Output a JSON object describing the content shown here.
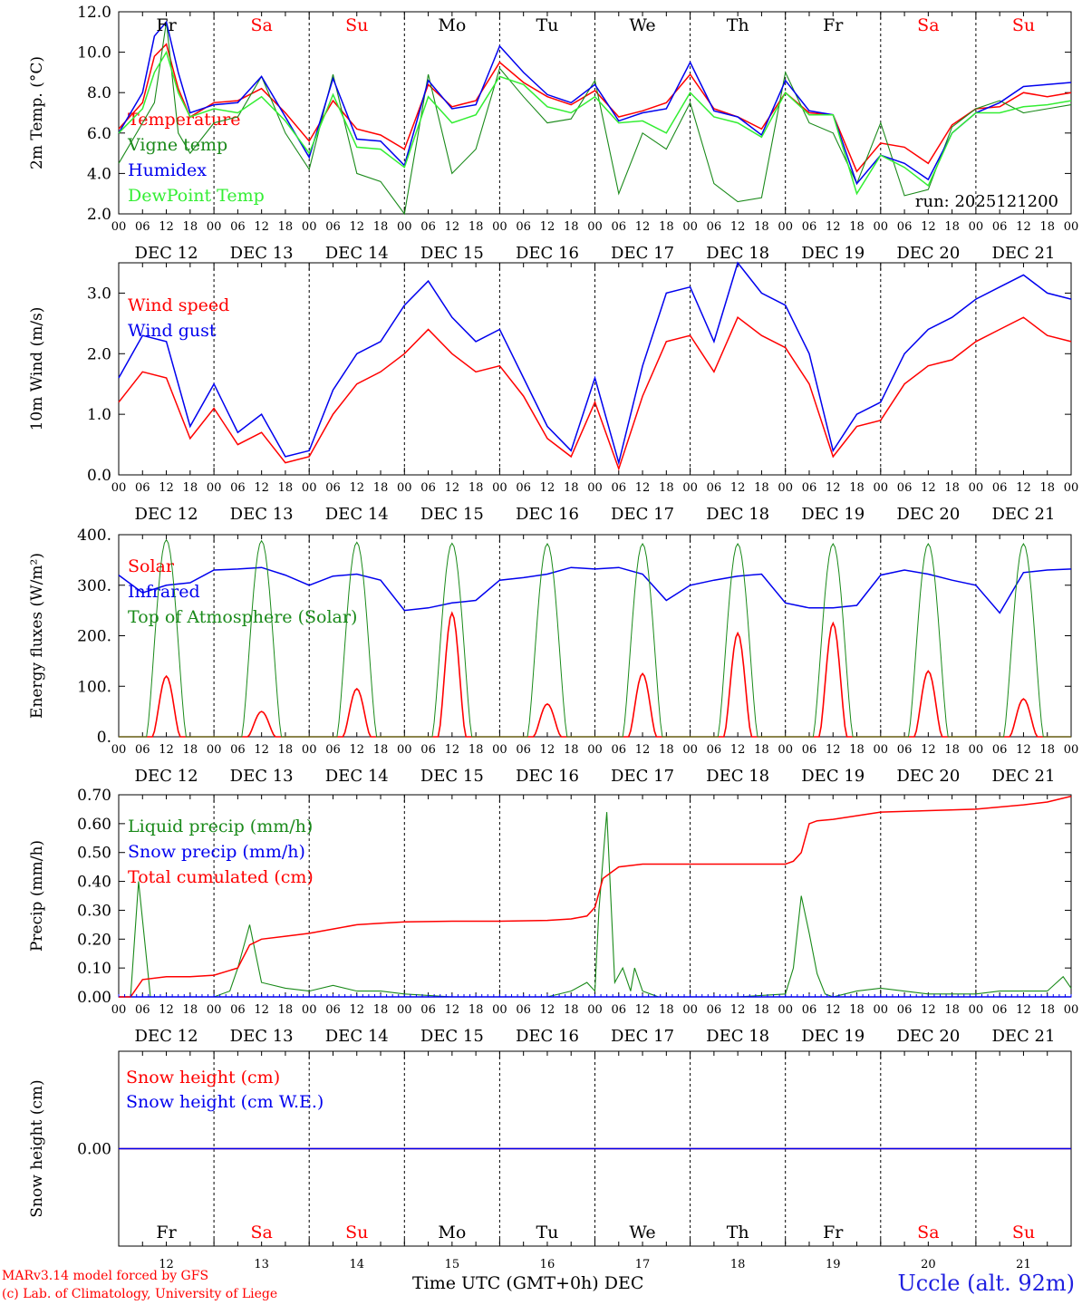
{
  "colors": {
    "red": "#ff0000",
    "darkgreen": "#1a8a1a",
    "blue": "#0000ee",
    "lightgreen": "#33ee33",
    "weekend": "#ff0000",
    "weekday": "#000000"
  },
  "x_axis": {
    "hour_ticks": [
      "00",
      "06",
      "12",
      "18"
    ],
    "final_tick": "00",
    "dates": [
      "DEC 12",
      "DEC 13",
      "DEC 14",
      "DEC 15",
      "DEC 16",
      "DEC 17",
      "DEC 18",
      "DEC 19",
      "DEC 20",
      "DEC 21"
    ],
    "days": [
      "Fr",
      "Sa",
      "Su",
      "Mo",
      "Tu",
      "We",
      "Th",
      "Fr",
      "Sa",
      "Su"
    ],
    "weekend": [
      false,
      true,
      true,
      false,
      false,
      false,
      false,
      false,
      true,
      true
    ],
    "day_numbers": [
      "12",
      "13",
      "14",
      "15",
      "16",
      "17",
      "18",
      "19",
      "20",
      "21"
    ],
    "title": "Time UTC (GMT+0h)",
    "title_suffix": "DEC"
  },
  "footer": {
    "model": "MARv3.14 model forced by GFS",
    "lab": "(c) Lab. of Climatology, University of Liege",
    "station": "Uccle (alt. 92m)"
  },
  "chart_data": [
    {
      "type": "line",
      "ylabel": "2m Temp. (°C)",
      "ylim": [
        2,
        12
      ],
      "yticks": [
        "2.0",
        "4.0",
        "6.0",
        "8.0",
        "10.0",
        "12.0"
      ],
      "annotation": "run: 2025121200",
      "series": [
        {
          "name": "Temperature",
          "color": "red",
          "x_hours": [
            0,
            6,
            9,
            12,
            15,
            18,
            24,
            30,
            36,
            42,
            48,
            54,
            60,
            66,
            72,
            78,
            84,
            90,
            96,
            102,
            108,
            114,
            120,
            126,
            132,
            138,
            144,
            150,
            156,
            162,
            168,
            174,
            180,
            186,
            192,
            198,
            204,
            210,
            216,
            222,
            228,
            234,
            240
          ],
          "values": [
            6.2,
            7.5,
            9.8,
            10.4,
            8.2,
            6.8,
            7.5,
            7.6,
            8.2,
            7.0,
            5.6,
            7.6,
            6.2,
            5.9,
            5.2,
            8.4,
            7.3,
            7.6,
            9.5,
            8.5,
            7.8,
            7.4,
            8.1,
            6.8,
            7.1,
            7.5,
            8.9,
            7.2,
            6.8,
            6.2,
            8.0,
            7.0,
            6.9,
            4.1,
            5.5,
            5.3,
            4.5,
            6.4,
            7.2,
            7.3,
            8.0,
            7.8,
            8.0
          ]
        },
        {
          "name": "Vigne temp",
          "color": "darkgreen",
          "x_hours": [
            0,
            6,
            9,
            12,
            15,
            18,
            24,
            30,
            36,
            42,
            48,
            54,
            60,
            66,
            72,
            78,
            84,
            90,
            96,
            102,
            108,
            114,
            120,
            126,
            132,
            138,
            144,
            150,
            156,
            162,
            168,
            174,
            180,
            186,
            192,
            198,
            204,
            210,
            216,
            222,
            228,
            234,
            240
          ],
          "values": [
            4.5,
            6.5,
            7.5,
            11.5,
            6.0,
            5.0,
            6.5,
            6.8,
            8.8,
            6.0,
            4.2,
            8.9,
            4.0,
            3.6,
            2.0,
            8.9,
            4.0,
            5.2,
            9.2,
            7.8,
            6.5,
            6.7,
            8.6,
            3.0,
            6.0,
            5.2,
            7.5,
            3.5,
            2.6,
            2.8,
            9.0,
            6.5,
            6.0,
            3.5,
            6.5,
            2.9,
            3.2,
            6.3,
            7.2,
            7.6,
            7.0,
            7.2,
            7.4
          ]
        },
        {
          "name": "Humidex",
          "color": "blue",
          "x_hours": [
            0,
            6,
            9,
            12,
            15,
            18,
            24,
            30,
            36,
            42,
            48,
            54,
            60,
            66,
            72,
            78,
            84,
            90,
            96,
            102,
            108,
            114,
            120,
            126,
            132,
            138,
            144,
            150,
            156,
            162,
            168,
            174,
            180,
            186,
            192,
            198,
            204,
            210,
            216,
            222,
            228,
            234,
            240
          ],
          "values": [
            6.0,
            8.0,
            10.8,
            11.5,
            9.0,
            7.0,
            7.4,
            7.5,
            8.8,
            6.8,
            4.8,
            8.7,
            5.7,
            5.6,
            4.4,
            8.6,
            7.2,
            7.4,
            10.3,
            9.0,
            7.9,
            7.5,
            8.4,
            6.6,
            7.0,
            7.2,
            9.5,
            7.1,
            6.8,
            5.9,
            8.6,
            7.1,
            6.9,
            3.5,
            4.9,
            4.5,
            3.7,
            6.0,
            7.0,
            7.5,
            8.3,
            8.4,
            8.5
          ]
        },
        {
          "name": "DewPoint Temp",
          "color": "lightgreen",
          "x_hours": [
            0,
            6,
            9,
            12,
            15,
            18,
            24,
            30,
            36,
            42,
            48,
            54,
            60,
            66,
            72,
            78,
            84,
            90,
            96,
            102,
            108,
            114,
            120,
            126,
            132,
            138,
            144,
            150,
            156,
            162,
            168,
            174,
            180,
            186,
            192,
            198,
            204,
            210,
            216,
            222,
            228,
            234,
            240
          ],
          "values": [
            6.0,
            7.2,
            9.0,
            10.0,
            8.0,
            6.8,
            7.2,
            7.0,
            7.8,
            6.6,
            5.0,
            7.9,
            5.3,
            5.2,
            4.3,
            7.8,
            6.5,
            6.9,
            8.8,
            8.4,
            7.3,
            7.0,
            7.8,
            6.5,
            6.6,
            6.0,
            8.0,
            6.8,
            6.5,
            5.8,
            8.0,
            6.9,
            6.9,
            3.0,
            4.9,
            4.3,
            3.4,
            6.0,
            7.0,
            7.0,
            7.3,
            7.4,
            7.6
          ]
        }
      ]
    },
    {
      "type": "line",
      "ylabel": "10m Wind (m/s)",
      "ylim": [
        0,
        3.5
      ],
      "yticks": [
        "0.0",
        "1.0",
        "2.0",
        "3.0"
      ],
      "series": [
        {
          "name": "Wind speed",
          "color": "red",
          "x_hours": [
            0,
            6,
            12,
            18,
            24,
            30,
            36,
            42,
            48,
            54,
            60,
            66,
            72,
            78,
            84,
            90,
            96,
            102,
            108,
            114,
            120,
            126,
            132,
            138,
            144,
            150,
            156,
            162,
            168,
            174,
            180,
            186,
            192,
            198,
            204,
            210,
            216,
            222,
            228,
            234,
            240
          ],
          "values": [
            1.2,
            1.7,
            1.6,
            0.6,
            1.1,
            0.5,
            0.7,
            0.2,
            0.3,
            1.0,
            1.5,
            1.7,
            2.0,
            2.4,
            2.0,
            1.7,
            1.8,
            1.3,
            0.6,
            0.3,
            1.2,
            0.1,
            1.3,
            2.2,
            2.3,
            1.7,
            2.6,
            2.3,
            2.1,
            1.5,
            0.3,
            0.8,
            0.9,
            1.5,
            1.8,
            1.9,
            2.2,
            2.4,
            2.6,
            2.3,
            2.2
          ]
        },
        {
          "name": "Wind gust",
          "color": "blue",
          "x_hours": [
            0,
            6,
            12,
            18,
            24,
            30,
            36,
            42,
            48,
            54,
            60,
            66,
            72,
            78,
            84,
            90,
            96,
            102,
            108,
            114,
            120,
            126,
            132,
            138,
            144,
            150,
            156,
            162,
            168,
            174,
            180,
            186,
            192,
            198,
            204,
            210,
            216,
            222,
            228,
            234,
            240
          ],
          "values": [
            1.6,
            2.3,
            2.2,
            0.8,
            1.5,
            0.7,
            1.0,
            0.3,
            0.4,
            1.4,
            2.0,
            2.2,
            2.8,
            3.2,
            2.6,
            2.2,
            2.4,
            1.6,
            0.8,
            0.4,
            1.6,
            0.2,
            1.8,
            3.0,
            3.1,
            2.2,
            3.5,
            3.0,
            2.8,
            2.0,
            0.4,
            1.0,
            1.2,
            2.0,
            2.4,
            2.6,
            2.9,
            3.1,
            3.3,
            3.0,
            2.9
          ]
        }
      ]
    },
    {
      "type": "line",
      "ylabel": "Energy fluxes (W/m²)",
      "ylim": [
        0,
        400
      ],
      "yticks": [
        "0.",
        "100.",
        "200.",
        "300.",
        "400."
      ],
      "series": [
        {
          "name": "Solar",
          "color": "red",
          "peak_values": [
            120,
            50,
            95,
            245,
            65,
            125,
            205,
            225,
            130,
            75
          ]
        },
        {
          "name": "Infrared",
          "color": "blue",
          "x_hours": [
            0,
            6,
            12,
            18,
            24,
            30,
            36,
            42,
            48,
            54,
            60,
            66,
            72,
            78,
            84,
            90,
            96,
            102,
            108,
            114,
            120,
            126,
            132,
            138,
            144,
            150,
            156,
            162,
            168,
            174,
            180,
            186,
            192,
            198,
            204,
            210,
            216,
            222,
            228,
            234,
            240
          ],
          "values": [
            320,
            285,
            300,
            305,
            330,
            332,
            335,
            320,
            300,
            318,
            322,
            310,
            250,
            255,
            265,
            270,
            310,
            315,
            322,
            335,
            332,
            335,
            322,
            270,
            300,
            310,
            318,
            322,
            265,
            255,
            255,
            260,
            320,
            330,
            322,
            310,
            300,
            245,
            325,
            330,
            332
          ]
        },
        {
          "name": "Top of Atmosphere (Solar)",
          "color": "darkgreen",
          "peak_values": [
            390,
            388,
            385,
            383,
            382,
            382,
            382,
            382,
            382,
            382
          ]
        }
      ]
    },
    {
      "type": "line",
      "ylabel": "Precip (mm/h)",
      "ylim": [
        0,
        0.7
      ],
      "yticks": [
        "0.00",
        "0.10",
        "0.20",
        "0.30",
        "0.40",
        "0.50",
        "0.60",
        "0.70"
      ],
      "series": [
        {
          "name": "Liquid precip (mm/h)",
          "color": "darkgreen",
          "x_hours": [
            0,
            3,
            5,
            8,
            12,
            18,
            24,
            28,
            30,
            33,
            36,
            42,
            48,
            54,
            60,
            66,
            72,
            84,
            96,
            108,
            114,
            118,
            120,
            121,
            123,
            125,
            127,
            129,
            130,
            132,
            134,
            136,
            144,
            156,
            168,
            170,
            172,
            174,
            176,
            178,
            180,
            186,
            192,
            204,
            216,
            222,
            228,
            234,
            238,
            240
          ],
          "values": [
            0,
            0,
            0.4,
            0,
            0,
            0,
            0,
            0.02,
            0.1,
            0.25,
            0.05,
            0.03,
            0.02,
            0.04,
            0.02,
            0.02,
            0.01,
            0,
            0,
            0,
            0.02,
            0.05,
            0.02,
            0.3,
            0.64,
            0.05,
            0.1,
            0.02,
            0.1,
            0.02,
            0.01,
            0,
            0,
            0,
            0.01,
            0.1,
            0.35,
            0.22,
            0.08,
            0.01,
            0,
            0.02,
            0.03,
            0.01,
            0.01,
            0.02,
            0.02,
            0.02,
            0.07,
            0.03
          ]
        },
        {
          "name": "Snow precip (mm/h)",
          "color": "blue",
          "x_hours": [
            0,
            240
          ],
          "values": [
            0,
            0
          ]
        },
        {
          "name": "Total cumulated (cm)",
          "color": "red",
          "x_hours": [
            0,
            3,
            6,
            12,
            18,
            24,
            30,
            33,
            36,
            42,
            48,
            54,
            60,
            66,
            72,
            84,
            96,
            108,
            114,
            118,
            120,
            122,
            124,
            126,
            132,
            144,
            156,
            168,
            170,
            172,
            174,
            176,
            180,
            192,
            204,
            216,
            228,
            234,
            240
          ],
          "values": [
            0,
            0,
            0.06,
            0.07,
            0.07,
            0.075,
            0.1,
            0.18,
            0.2,
            0.21,
            0.22,
            0.235,
            0.25,
            0.255,
            0.26,
            0.262,
            0.262,
            0.265,
            0.27,
            0.28,
            0.31,
            0.41,
            0.43,
            0.45,
            0.46,
            0.46,
            0.46,
            0.46,
            0.47,
            0.5,
            0.6,
            0.61,
            0.615,
            0.64,
            0.645,
            0.65,
            0.665,
            0.675,
            0.695
          ]
        }
      ]
    },
    {
      "type": "line",
      "ylabel": "Snow height (cm)",
      "yticks": [
        "0.00"
      ],
      "series": [
        {
          "name": "Snow height (cm)",
          "color": "red",
          "x_hours": [
            0,
            240
          ],
          "values": [
            0,
            0
          ]
        },
        {
          "name": "Snow height (cm W.E.)",
          "color": "blue",
          "x_hours": [
            0,
            240
          ],
          "values": [
            0,
            0
          ]
        }
      ]
    }
  ]
}
